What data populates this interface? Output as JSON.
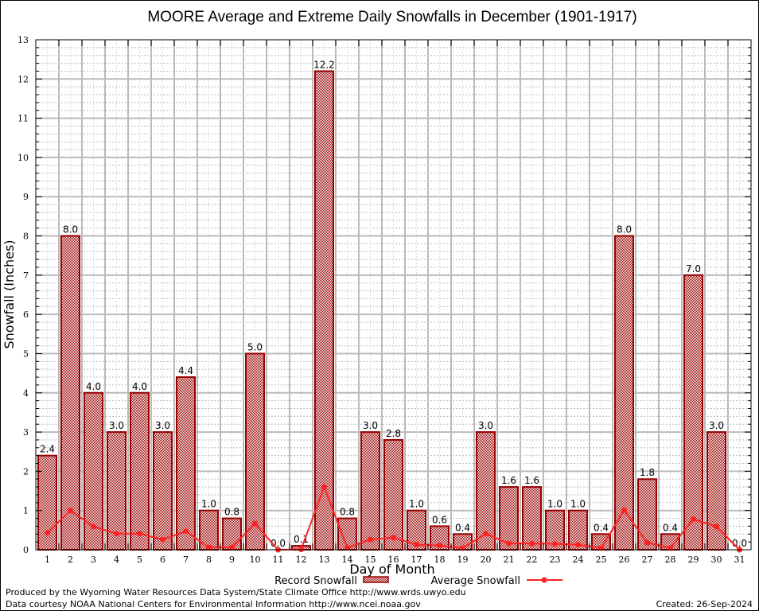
{
  "chart_data": {
    "type": "bar",
    "title": "MOORE Average and Extreme Daily Snowfalls in December (1901-1917)",
    "xlabel": "Day of Month",
    "ylabel": "Snowfall (Inches)",
    "ylim": [
      0,
      13
    ],
    "yticks": [
      "0",
      "1",
      "2",
      "3",
      "4",
      "5",
      "6",
      "7",
      "8",
      "9",
      "10",
      "11",
      "12",
      "13"
    ],
    "categories": [
      "1",
      "2",
      "3",
      "4",
      "5",
      "6",
      "7",
      "8",
      "9",
      "10",
      "11",
      "12",
      "13",
      "14",
      "15",
      "16",
      "17",
      "18",
      "19",
      "20",
      "21",
      "22",
      "23",
      "24",
      "25",
      "26",
      "27",
      "28",
      "29",
      "30",
      "31"
    ],
    "grid": true,
    "legend_position": "bottom-center",
    "series": [
      {
        "name": "Record Snowfall",
        "type": "bar",
        "color": "#990000",
        "values": [
          2.4,
          8.0,
          4.0,
          3.0,
          4.0,
          3.0,
          4.4,
          1.0,
          0.8,
          5.0,
          0.0,
          0.1,
          12.2,
          0.8,
          3.0,
          2.8,
          1.0,
          0.6,
          0.4,
          3.0,
          1.6,
          1.6,
          1.0,
          1.0,
          0.4,
          8.0,
          1.8,
          0.4,
          7.0,
          3.0,
          0.0
        ],
        "labels": [
          "2.4",
          "8.0",
          "4.0",
          "3.0",
          "4.0",
          "3.0",
          "4.4",
          "1.0",
          "0.8",
          "5.0",
          "0.0",
          "0.1",
          "12.2",
          "0.8",
          "3.0",
          "2.8",
          "1.0",
          "0.6",
          "0.4",
          "3.0",
          "1.6",
          "1.6",
          "1.0",
          "1.0",
          "0.4",
          "8.0",
          "1.8",
          "0.4",
          "7.0",
          "3.0",
          "0.0"
        ]
      },
      {
        "name": "Average Snowfall",
        "type": "line",
        "color": "#ff2222",
        "values": [
          0.43,
          1.0,
          0.59,
          0.41,
          0.41,
          0.26,
          0.47,
          0.06,
          0.06,
          0.67,
          0.0,
          0.01,
          1.6,
          0.05,
          0.26,
          0.31,
          0.13,
          0.11,
          0.04,
          0.41,
          0.16,
          0.16,
          0.15,
          0.13,
          0.04,
          1.01,
          0.18,
          0.04,
          0.78,
          0.59,
          0.0
        ]
      }
    ]
  },
  "footer": {
    "line1": "Produced by the Wyoming Water Resources Data System/State Climate Office http://www.wrds.uwyo.edu",
    "line2": "Data courtesy NOAA National Centers for Environmental Information http://www.ncei.noaa.gov",
    "created": "Created:  26-Sep-2024"
  }
}
